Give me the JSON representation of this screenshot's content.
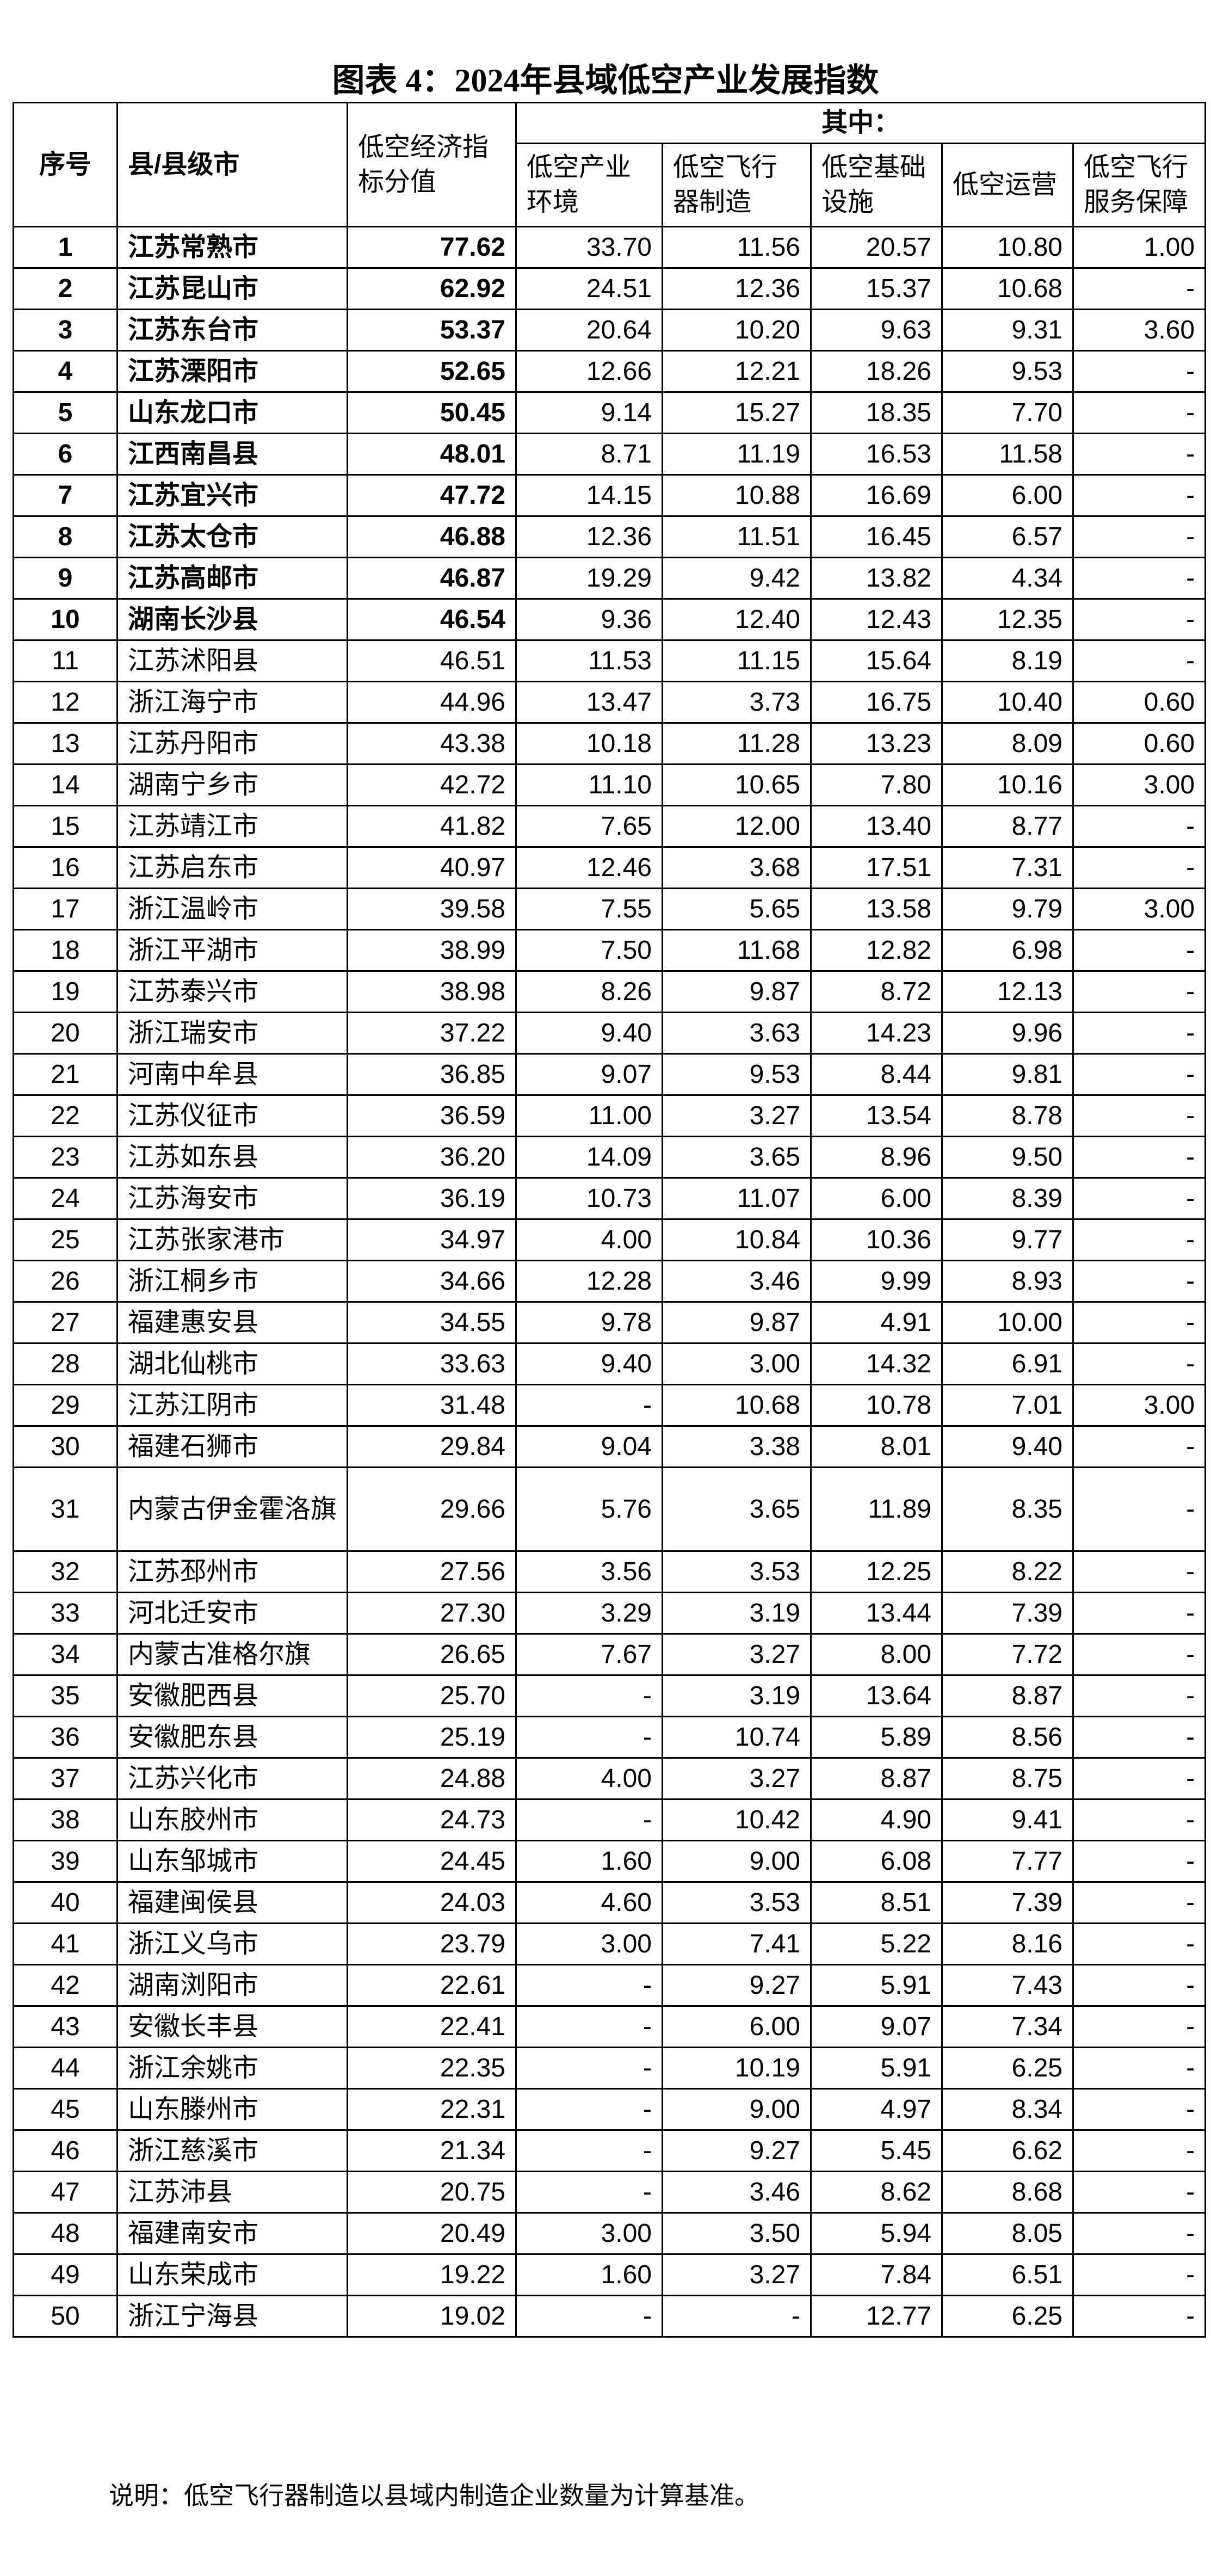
{
  "title": "图表 4：2024年县域低空产业发展指数",
  "headers": {
    "seq": "序号",
    "name": "县/县级市",
    "score": "低空经济指标分值",
    "group": "其中：",
    "sub": [
      "低空产业环境",
      "低空飞行器制造",
      "低空基础设施",
      "低空运营",
      "低空飞行服务保障"
    ]
  },
  "rows": [
    [
      "1",
      "江苏常熟市",
      "77.62",
      "33.70",
      "11.56",
      "20.57",
      "10.80",
      "1.00"
    ],
    [
      "2",
      "江苏昆山市",
      "62.92",
      "24.51",
      "12.36",
      "15.37",
      "10.68",
      "-"
    ],
    [
      "3",
      "江苏东台市",
      "53.37",
      "20.64",
      "10.20",
      "9.63",
      "9.31",
      "3.60"
    ],
    [
      "4",
      "江苏溧阳市",
      "52.65",
      "12.66",
      "12.21",
      "18.26",
      "9.53",
      "-"
    ],
    [
      "5",
      "山东龙口市",
      "50.45",
      "9.14",
      "15.27",
      "18.35",
      "7.70",
      "-"
    ],
    [
      "6",
      "江西南昌县",
      "48.01",
      "8.71",
      "11.19",
      "16.53",
      "11.58",
      "-"
    ],
    [
      "7",
      "江苏宜兴市",
      "47.72",
      "14.15",
      "10.88",
      "16.69",
      "6.00",
      "-"
    ],
    [
      "8",
      "江苏太仓市",
      "46.88",
      "12.36",
      "11.51",
      "16.45",
      "6.57",
      "-"
    ],
    [
      "9",
      "江苏高邮市",
      "46.87",
      "19.29",
      "9.42",
      "13.82",
      "4.34",
      "-"
    ],
    [
      "10",
      "湖南长沙县",
      "46.54",
      "9.36",
      "12.40",
      "12.43",
      "12.35",
      "-"
    ],
    [
      "11",
      "江苏沭阳县",
      "46.51",
      "11.53",
      "11.15",
      "15.64",
      "8.19",
      "-"
    ],
    [
      "12",
      "浙江海宁市",
      "44.96",
      "13.47",
      "3.73",
      "16.75",
      "10.40",
      "0.60"
    ],
    [
      "13",
      "江苏丹阳市",
      "43.38",
      "10.18",
      "11.28",
      "13.23",
      "8.09",
      "0.60"
    ],
    [
      "14",
      "湖南宁乡市",
      "42.72",
      "11.10",
      "10.65",
      "7.80",
      "10.16",
      "3.00"
    ],
    [
      "15",
      "江苏靖江市",
      "41.82",
      "7.65",
      "12.00",
      "13.40",
      "8.77",
      "-"
    ],
    [
      "16",
      "江苏启东市",
      "40.97",
      "12.46",
      "3.68",
      "17.51",
      "7.31",
      "-"
    ],
    [
      "17",
      "浙江温岭市",
      "39.58",
      "7.55",
      "5.65",
      "13.58",
      "9.79",
      "3.00"
    ],
    [
      "18",
      "浙江平湖市",
      "38.99",
      "7.50",
      "11.68",
      "12.82",
      "6.98",
      "-"
    ],
    [
      "19",
      "江苏泰兴市",
      "38.98",
      "8.26",
      "9.87",
      "8.72",
      "12.13",
      "-"
    ],
    [
      "20",
      "浙江瑞安市",
      "37.22",
      "9.40",
      "3.63",
      "14.23",
      "9.96",
      "-"
    ],
    [
      "21",
      "河南中牟县",
      "36.85",
      "9.07",
      "9.53",
      "8.44",
      "9.81",
      "-"
    ],
    [
      "22",
      "江苏仪征市",
      "36.59",
      "11.00",
      "3.27",
      "13.54",
      "8.78",
      "-"
    ],
    [
      "23",
      "江苏如东县",
      "36.20",
      "14.09",
      "3.65",
      "8.96",
      "9.50",
      "-"
    ],
    [
      "24",
      "江苏海安市",
      "36.19",
      "10.73",
      "11.07",
      "6.00",
      "8.39",
      "-"
    ],
    [
      "25",
      "江苏张家港市",
      "34.97",
      "4.00",
      "10.84",
      "10.36",
      "9.77",
      "-"
    ],
    [
      "26",
      "浙江桐乡市",
      "34.66",
      "12.28",
      "3.46",
      "9.99",
      "8.93",
      "-"
    ],
    [
      "27",
      "福建惠安县",
      "34.55",
      "9.78",
      "9.87",
      "4.91",
      "10.00",
      "-"
    ],
    [
      "28",
      "湖北仙桃市",
      "33.63",
      "9.40",
      "3.00",
      "14.32",
      "6.91",
      "-"
    ],
    [
      "29",
      "江苏江阴市",
      "31.48",
      "-",
      "10.68",
      "10.78",
      "7.01",
      "3.00"
    ],
    [
      "30",
      "福建石狮市",
      "29.84",
      "9.04",
      "3.38",
      "8.01",
      "9.40",
      "-"
    ],
    [
      "31",
      "内蒙古伊金霍洛旗",
      "29.66",
      "5.76",
      "3.65",
      "11.89",
      "8.35",
      "-"
    ],
    [
      "32",
      "江苏邳州市",
      "27.56",
      "3.56",
      "3.53",
      "12.25",
      "8.22",
      "-"
    ],
    [
      "33",
      "河北迁安市",
      "27.30",
      "3.29",
      "3.19",
      "13.44",
      "7.39",
      "-"
    ],
    [
      "34",
      "内蒙古准格尔旗",
      "26.65",
      "7.67",
      "3.27",
      "8.00",
      "7.72",
      "-"
    ],
    [
      "35",
      "安徽肥西县",
      "25.70",
      "-",
      "3.19",
      "13.64",
      "8.87",
      "-"
    ],
    [
      "36",
      "安徽肥东县",
      "25.19",
      "-",
      "10.74",
      "5.89",
      "8.56",
      "-"
    ],
    [
      "37",
      "江苏兴化市",
      "24.88",
      "4.00",
      "3.27",
      "8.87",
      "8.75",
      "-"
    ],
    [
      "38",
      "山东胶州市",
      "24.73",
      "-",
      "10.42",
      "4.90",
      "9.41",
      "-"
    ],
    [
      "39",
      "山东邹城市",
      "24.45",
      "1.60",
      "9.00",
      "6.08",
      "7.77",
      "-"
    ],
    [
      "40",
      "福建闽侯县",
      "24.03",
      "4.60",
      "3.53",
      "8.51",
      "7.39",
      "-"
    ],
    [
      "41",
      "浙江义乌市",
      "23.79",
      "3.00",
      "7.41",
      "5.22",
      "8.16",
      "-"
    ],
    [
      "42",
      "湖南浏阳市",
      "22.61",
      "-",
      "9.27",
      "5.91",
      "7.43",
      "-"
    ],
    [
      "43",
      "安徽长丰县",
      "22.41",
      "-",
      "6.00",
      "9.07",
      "7.34",
      "-"
    ],
    [
      "44",
      "浙江余姚市",
      "22.35",
      "-",
      "10.19",
      "5.91",
      "6.25",
      "-"
    ],
    [
      "45",
      "山东滕州市",
      "22.31",
      "-",
      "9.00",
      "4.97",
      "8.34",
      "-"
    ],
    [
      "46",
      "浙江慈溪市",
      "21.34",
      "-",
      "9.27",
      "5.45",
      "6.62",
      "-"
    ],
    [
      "47",
      "江苏沛县",
      "20.75",
      "-",
      "3.46",
      "8.62",
      "8.68",
      "-"
    ],
    [
      "48",
      "福建南安市",
      "20.49",
      "3.00",
      "3.50",
      "5.94",
      "8.05",
      "-"
    ],
    [
      "49",
      "山东荣成市",
      "19.22",
      "1.60",
      "3.27",
      "7.84",
      "6.51",
      "-"
    ],
    [
      "50",
      "浙江宁海县",
      "19.02",
      "-",
      "-",
      "12.77",
      "6.25",
      "-"
    ]
  ],
  "note": "说明：低空飞行器制造以县域内制造企业数量为计算基准。"
}
